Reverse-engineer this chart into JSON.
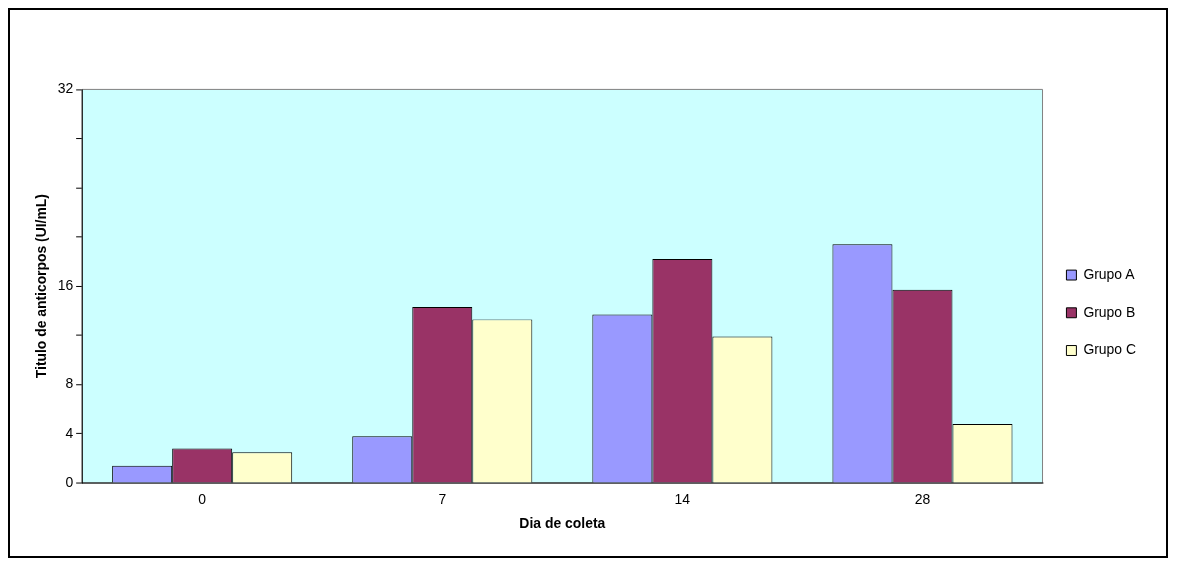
{
  "chart_data": {
    "type": "bar",
    "xlabel": "Dia de coleta",
    "ylabel": "Titulo de anticorpos (UI/mL)",
    "categories": [
      "0",
      "7",
      "14",
      "28"
    ],
    "series": [
      {
        "name": "Grupo A",
        "color": "#9999ff",
        "values": [
          1.4,
          3.8,
          13.7,
          19.4
        ]
      },
      {
        "name": "Grupo B",
        "color": "#993366",
        "values": [
          2.8,
          14.3,
          18.2,
          15.7
        ]
      },
      {
        "name": "Grupo C",
        "color": "#ffffcc",
        "values": [
          2.5,
          13.3,
          11.9,
          4.8
        ]
      }
    ],
    "ylim": [
      0,
      32
    ],
    "yticks": [
      0,
      4,
      8,
      {
        "value": 12,
        "label": null
      },
      16,
      {
        "value": 20,
        "label": null
      },
      {
        "value": 24,
        "label": null
      },
      {
        "value": 28,
        "label": null
      },
      32
    ],
    "grid": false,
    "legend": "right"
  }
}
